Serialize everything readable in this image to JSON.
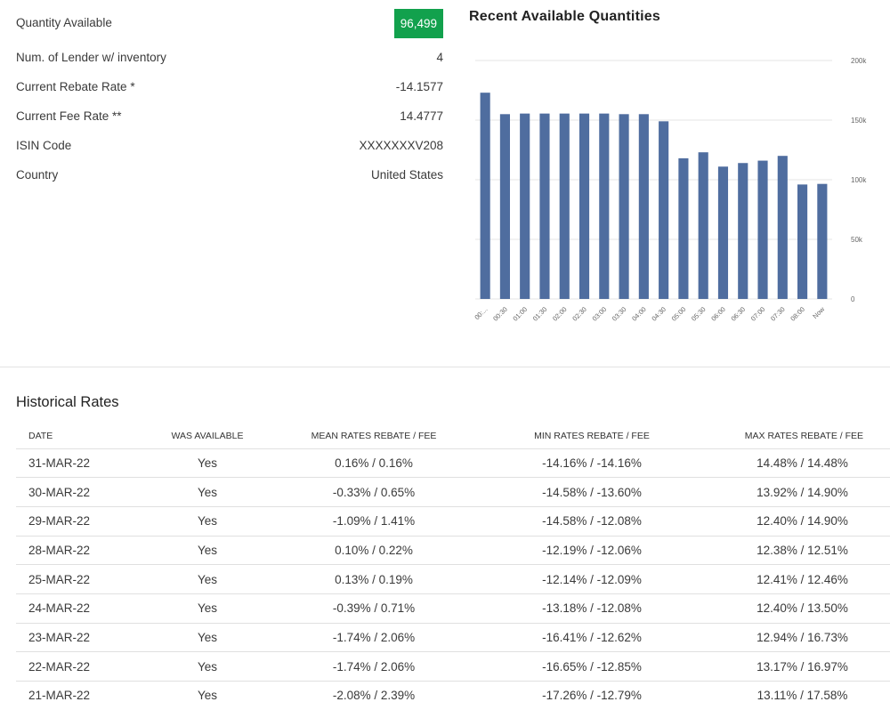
{
  "stats": {
    "quantity_available": {
      "label": "Quantity Available",
      "value": "96,499"
    },
    "rows": [
      {
        "label": "Num. of Lender w/ inventory",
        "value": "4"
      },
      {
        "label": "Current Rebate Rate *",
        "value": "-14.1577"
      },
      {
        "label": "Current Fee Rate **",
        "value": "14.4777"
      },
      {
        "label": "ISIN Code",
        "value": "XXXXXXXV208"
      },
      {
        "label": "Country",
        "value": "United States"
      }
    ]
  },
  "chart": {
    "title": "Recent Available Quantities",
    "bar_color": "#4f6d9f"
  },
  "chart_data": {
    "type": "bar",
    "categories": [
      "00:...",
      "00:30",
      "01:00",
      "01:30",
      "02:00",
      "02:30",
      "03:00",
      "03:30",
      "04:00",
      "04:30",
      "05:00",
      "05:30",
      "06:00",
      "06:30",
      "07:00",
      "07:30",
      "08:00",
      "Now"
    ],
    "values": [
      173000,
      155000,
      155500,
      155500,
      155500,
      155500,
      155500,
      155000,
      155000,
      149000,
      118000,
      123000,
      111000,
      114000,
      116000,
      120000,
      96000,
      96499
    ],
    "ylim": [
      0,
      200000
    ],
    "y_ticks": [
      0,
      50000,
      100000,
      150000,
      200000
    ],
    "y_tick_labels": [
      "0",
      "50k",
      "100k",
      "150k",
      "200k"
    ],
    "y_axis_side": "right",
    "grid": true,
    "title": "Recent Available Quantities"
  },
  "history": {
    "title": "Historical Rates",
    "headers": [
      "DATE",
      "WAS AVAILABLE",
      "MEAN RATES REBATE / FEE",
      "MIN RATES REBATE / FEE",
      "MAX RATES REBATE / FEE"
    ],
    "rows": [
      [
        "31-MAR-22",
        "Yes",
        "0.16% / 0.16%",
        "-14.16% / -14.16%",
        "14.48% / 14.48%"
      ],
      [
        "30-MAR-22",
        "Yes",
        "-0.33% / 0.65%",
        "-14.58% / -13.60%",
        "13.92% / 14.90%"
      ],
      [
        "29-MAR-22",
        "Yes",
        "-1.09% / 1.41%",
        "-14.58% / -12.08%",
        "12.40% / 14.90%"
      ],
      [
        "28-MAR-22",
        "Yes",
        "0.10% / 0.22%",
        "-12.19% / -12.06%",
        "12.38% / 12.51%"
      ],
      [
        "25-MAR-22",
        "Yes",
        "0.13% / 0.19%",
        "-12.14% / -12.09%",
        "12.41% / 12.46%"
      ],
      [
        "24-MAR-22",
        "Yes",
        "-0.39% / 0.71%",
        "-13.18% / -12.08%",
        "12.40% / 13.50%"
      ],
      [
        "23-MAR-22",
        "Yes",
        "-1.74% / 2.06%",
        "-16.41% / -12.62%",
        "12.94% / 16.73%"
      ],
      [
        "22-MAR-22",
        "Yes",
        "-1.74% / 2.06%",
        "-16.65% / -12.85%",
        "13.17% / 16.97%"
      ],
      [
        "21-MAR-22",
        "Yes",
        "-2.08% / 2.39%",
        "-17.26% / -12.79%",
        "13.11% / 17.58%"
      ]
    ]
  }
}
